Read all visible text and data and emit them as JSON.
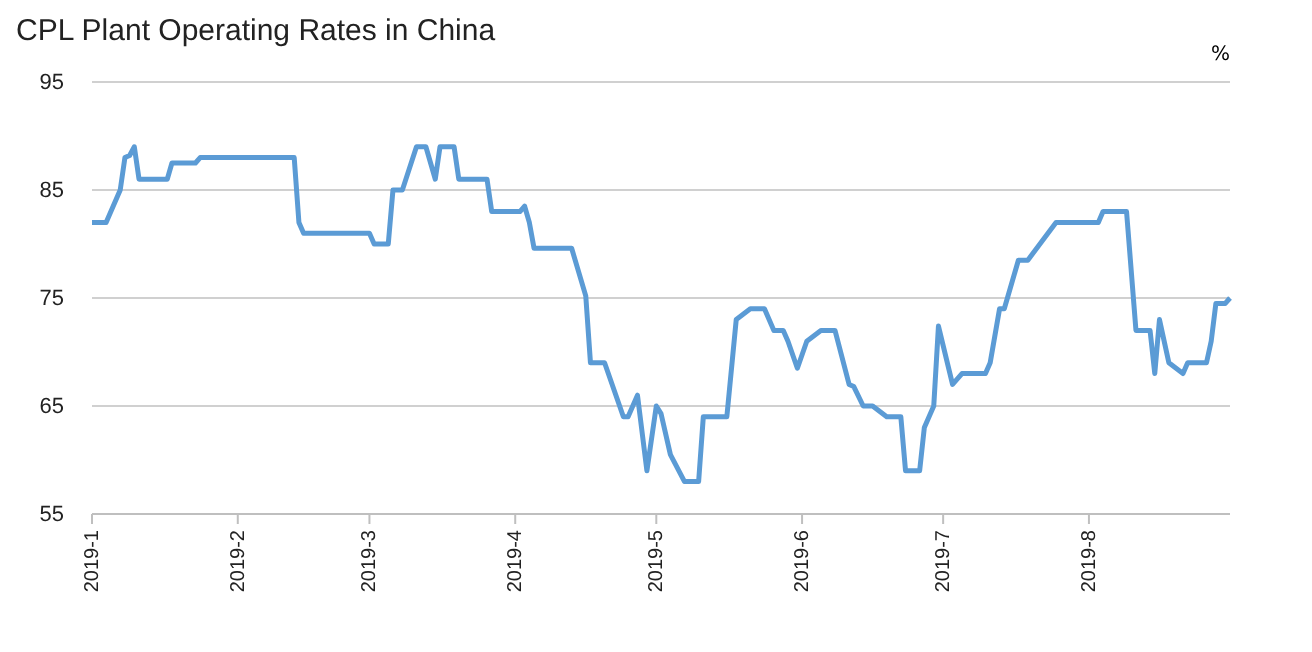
{
  "chart_data": {
    "type": "line",
    "title": "CPL Plant Operating Rates in China",
    "ylabel": "%",
    "xlim": [
      "2019-01-01",
      "2019-08-31"
    ],
    "xticks": [
      {
        "value": "2019-01-01",
        "label": "2019-1"
      },
      {
        "value": "2019-02-01",
        "label": "2019-2"
      },
      {
        "value": "2019-03-01",
        "label": "2019-3"
      },
      {
        "value": "2019-04-01",
        "label": "2019-4"
      },
      {
        "value": "2019-05-01",
        "label": "2019-5"
      },
      {
        "value": "2019-06-01",
        "label": "2019-6"
      },
      {
        "value": "2019-07-01",
        "label": "2019-7"
      },
      {
        "value": "2019-08-01",
        "label": "2019-8"
      }
    ],
    "ylim": [
      55,
      95
    ],
    "yticks": [
      55,
      65,
      75,
      85,
      95
    ],
    "grid": "y",
    "marker": "none",
    "line_style": "solid",
    "x": [
      "2019-01-01",
      "2019-01-04",
      "2019-01-07",
      "2019-01-08",
      "2019-01-09",
      "2019-01-10",
      "2019-01-11",
      "2019-01-17",
      "2019-01-18",
      "2019-01-23",
      "2019-01-24",
      "2019-02-13",
      "2019-02-14",
      "2019-02-15",
      "2019-03-01",
      "2019-03-02",
      "2019-03-05",
      "2019-03-06",
      "2019-03-08",
      "2019-03-11",
      "2019-03-13",
      "2019-03-15",
      "2019-03-16",
      "2019-03-19",
      "2019-03-20",
      "2019-03-26",
      "2019-03-27",
      "2019-04-02",
      "2019-04-03",
      "2019-04-04",
      "2019-04-05",
      "2019-04-13",
      "2019-04-16",
      "2019-04-17",
      "2019-04-20",
      "2019-04-24",
      "2019-04-25",
      "2019-04-27",
      "2019-04-29",
      "2019-05-01",
      "2019-05-02",
      "2019-05-04",
      "2019-05-07",
      "2019-05-10",
      "2019-05-11",
      "2019-05-16",
      "2019-05-18",
      "2019-05-21",
      "2019-05-24",
      "2019-05-26",
      "2019-05-28",
      "2019-05-29",
      "2019-05-31",
      "2019-06-02",
      "2019-06-05",
      "2019-06-08",
      "2019-06-11",
      "2019-06-12",
      "2019-06-14",
      "2019-06-16",
      "2019-06-19",
      "2019-06-22",
      "2019-06-23",
      "2019-06-26",
      "2019-06-27",
      "2019-06-29",
      "2019-06-30",
      "2019-07-03",
      "2019-07-05",
      "2019-07-10",
      "2019-07-11",
      "2019-07-13",
      "2019-07-14",
      "2019-07-17",
      "2019-07-19",
      "2019-07-25",
      "2019-08-03",
      "2019-08-04",
      "2019-08-09",
      "2019-08-11",
      "2019-08-14",
      "2019-08-15",
      "2019-08-16",
      "2019-08-18",
      "2019-08-21",
      "2019-08-22",
      "2019-08-26",
      "2019-08-27",
      "2019-08-28",
      "2019-08-30",
      "2019-08-31"
    ],
    "series": [
      {
        "color": "#5b9bd5",
        "values": [
          82,
          82,
          85,
          88,
          88.2,
          89,
          86,
          86,
          87.5,
          87.5,
          88,
          88,
          82,
          81,
          81,
          80,
          80,
          85,
          85,
          89,
          89,
          86,
          89,
          89,
          86,
          86,
          83,
          83,
          83.5,
          82,
          79.6,
          79.6,
          75.2,
          69,
          69,
          64,
          64,
          66,
          59,
          65,
          64.3,
          60.5,
          58,
          58,
          64,
          64,
          73,
          74,
          74,
          72,
          72,
          71,
          68.5,
          71,
          72,
          72,
          67,
          66.8,
          65,
          65,
          64,
          64,
          59,
          59,
          63,
          65,
          72.4,
          67,
          68,
          68,
          69,
          74,
          74,
          78.5,
          78.5,
          82,
          82,
          83,
          83,
          72,
          72,
          68,
          73,
          69,
          68,
          69,
          69,
          71,
          74.5,
          74.5,
          75
        ]
      }
    ]
  }
}
